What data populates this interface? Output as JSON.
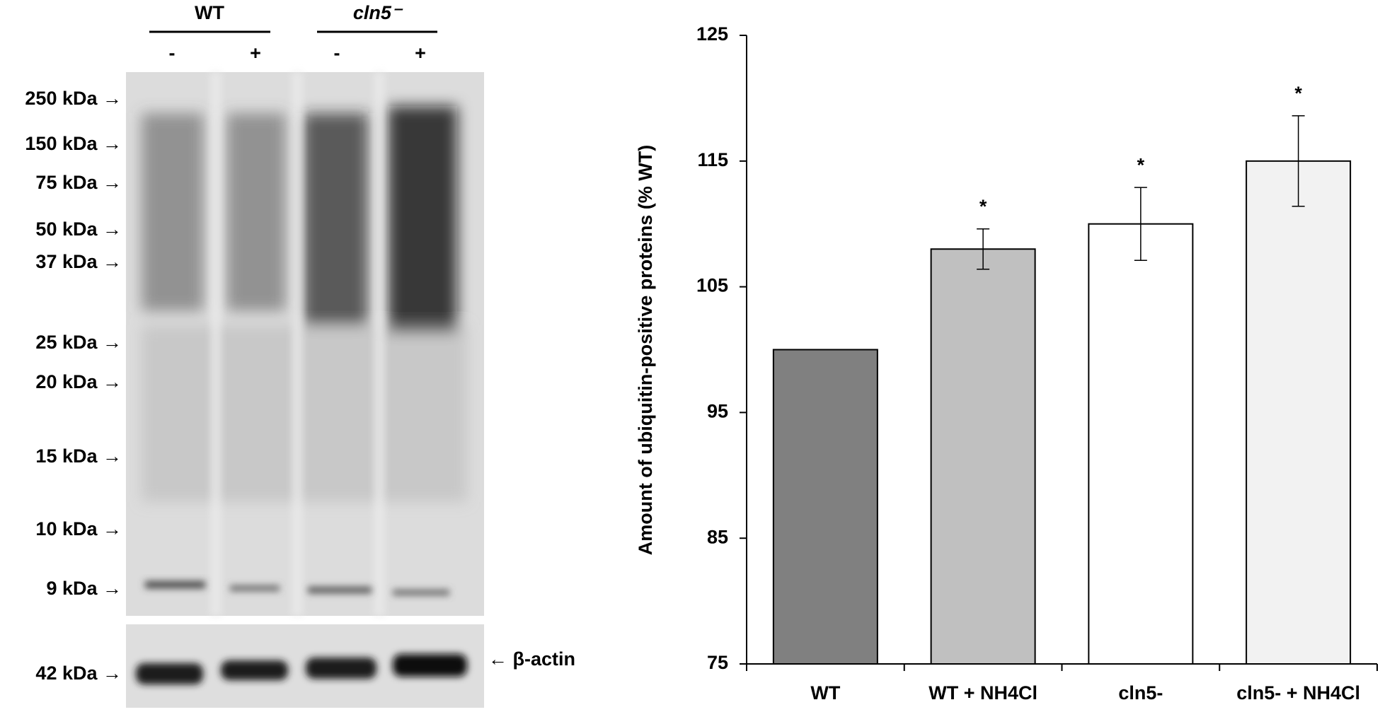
{
  "blot": {
    "groups": [
      "WT",
      "cln5⁻"
    ],
    "lane_signs": [
      "-",
      "+",
      "-",
      "+"
    ],
    "markers": [
      "250 kDa →",
      "150 kDa →",
      "75 kDa →",
      "50 kDa →",
      "37 kDa →",
      "25 kDa →",
      "20 kDa →",
      "15 kDa →",
      "10 kDa →",
      "9 kDa →"
    ],
    "actin_marker": "42 kDa →",
    "actin_label": "← β-actin"
  },
  "chart_data": {
    "type": "bar",
    "y_label": "Amount of ubiquitin-positive proteins (% WT)",
    "categories": [
      "WT",
      "WT + NH4Cl",
      "cln5-",
      "cln5- + NH4Cl"
    ],
    "series": [
      {
        "values": [
          100,
          108,
          110,
          115
        ],
        "errors": [
          null,
          1.6,
          2.9,
          3.6
        ],
        "colors": [
          "#808080",
          "#c0c0c0",
          "#ffffff",
          "#f2f2f2"
        ],
        "annotations": [
          null,
          "*",
          "*",
          "*"
        ]
      }
    ],
    "ylim": [
      75,
      125
    ],
    "yticks": [
      75,
      85,
      95,
      105,
      115,
      125
    ]
  }
}
